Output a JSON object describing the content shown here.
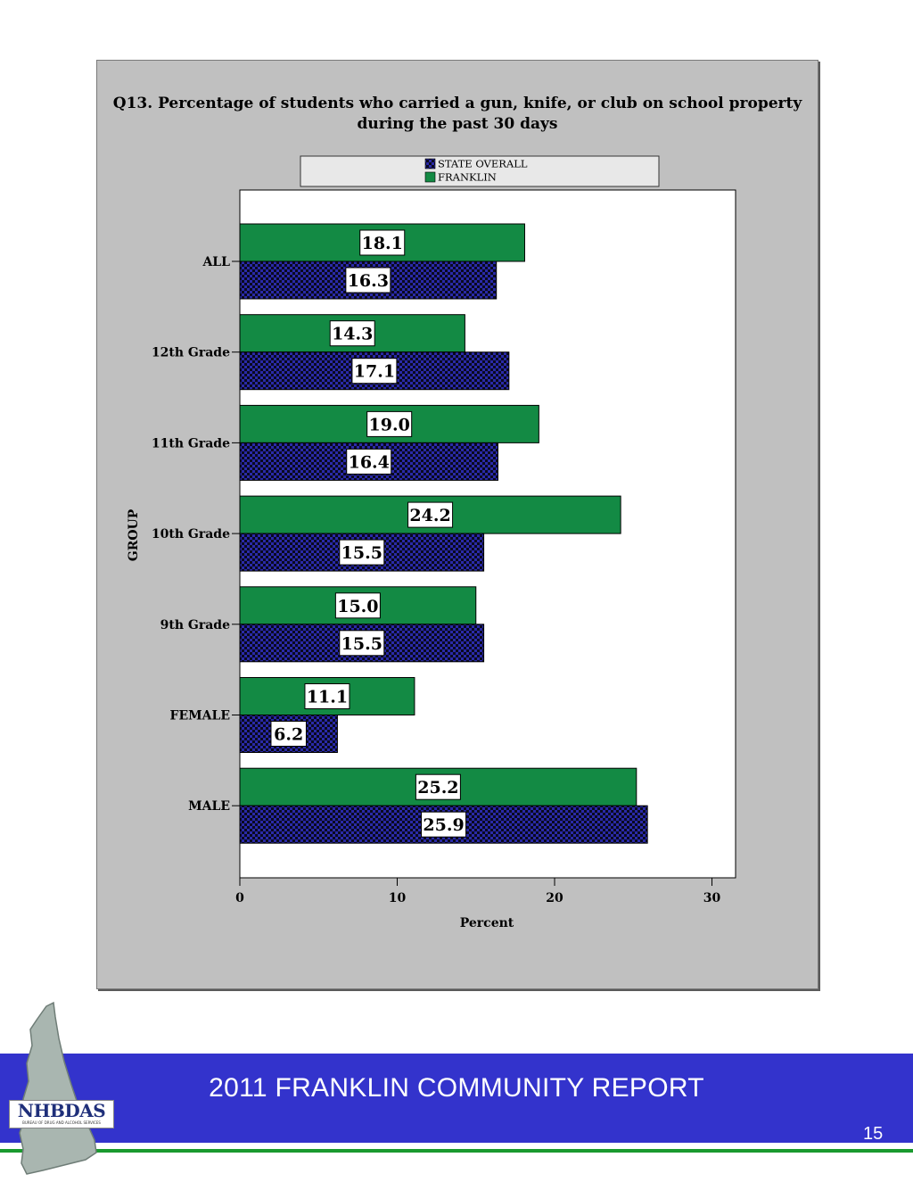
{
  "chart_data": {
    "type": "bar",
    "orientation": "horizontal",
    "title_line1": "Q13. Percentage of students who carried a gun, knife, or club on school property",
    "title_line2": "during the past 30 days",
    "xlabel": "Percent",
    "ylabel": "GROUP",
    "xlim": [
      0,
      31.5
    ],
    "xticks": [
      "0",
      "10",
      "20",
      "30"
    ],
    "categories": [
      "ALL",
      "12th Grade",
      "11th Grade",
      "10th Grade",
      "9th Grade",
      "FEMALE",
      "MALE"
    ],
    "series": [
      {
        "name": "FRANKLIN",
        "values": [
          18.1,
          14.3,
          19.0,
          24.2,
          15.0,
          11.1,
          25.2
        ],
        "labels": [
          "18.1",
          "14.3",
          "19.0",
          "24.2",
          "15.0",
          "11.1",
          "25.2"
        ]
      },
      {
        "name": "STATE OVERALL",
        "values": [
          16.3,
          17.1,
          16.4,
          15.5,
          15.5,
          6.2,
          25.9
        ],
        "labels": [
          "16.3",
          "17.1",
          "16.4",
          "15.5",
          "15.5",
          "6.2",
          "25.9"
        ]
      }
    ],
    "legend_order": [
      "STATE OVERALL",
      "FRANKLIN"
    ],
    "legend_position": "top",
    "grid": false,
    "colors": {
      "FRANKLIN": "#138a44",
      "STATE OVERALL": "#2a2aa8",
      "panel": "#c0c0c0",
      "plot": "#ffffff"
    }
  },
  "footer": {
    "title": "2011 FRANKLIN COMMUNITY REPORT",
    "page_number": "15",
    "logo_text": "NHBDAS",
    "logo_subtext": "BUREAU OF DRUG AND ALCOHOL SERVICES",
    "colors": {
      "band": "#3333cc",
      "rule": "#1a9a2e"
    }
  }
}
